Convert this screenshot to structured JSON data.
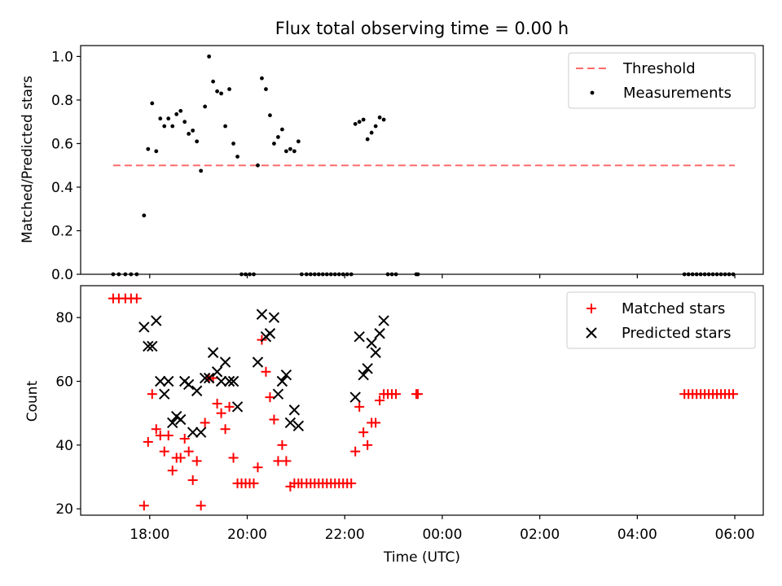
{
  "title": "Flux total observing time = 0.00 h",
  "colors": {
    "threshold": "#ff6b6b",
    "measurement": "#000000",
    "matched": "#ff0000",
    "predicted": "#000000"
  },
  "chart_data": [
    {
      "type": "scatter",
      "ylabel": "Matched/Predicted stars",
      "xlabel": "",
      "ylim": [
        0.0,
        1.05
      ],
      "yticks": [
        "0.0",
        "0.2",
        "0.4",
        "0.6",
        "0.8",
        "1.0"
      ],
      "legend_position": "top-right",
      "threshold": {
        "name": "Threshold",
        "value": 0.5,
        "x_range": [
          "17:15",
          "06:00"
        ],
        "style": "dashed"
      },
      "series": [
        {
          "name": "Measurements",
          "marker": "dot",
          "points": [
            [
              "17:15",
              0
            ],
            [
              "17:22",
              0
            ],
            [
              "17:30",
              0
            ],
            [
              "17:37",
              0
            ],
            [
              "17:44",
              0
            ],
            [
              "17:53",
              0.27
            ],
            [
              "17:58",
              0.575
            ],
            [
              "18:03",
              0.785
            ],
            [
              "18:08",
              0.565
            ],
            [
              "18:13",
              0.715
            ],
            [
              "18:18",
              0.68
            ],
            [
              "18:23",
              0.715
            ],
            [
              "18:28",
              0.68
            ],
            [
              "18:33",
              0.735
            ],
            [
              "18:38",
              0.75
            ],
            [
              "18:43",
              0.7
            ],
            [
              "18:48",
              0.645
            ],
            [
              "18:53",
              0.66
            ],
            [
              "18:58",
              0.61
            ],
            [
              "19:03",
              0.475
            ],
            [
              "19:08",
              0.77
            ],
            [
              "19:13",
              1.0
            ],
            [
              "19:18",
              0.885
            ],
            [
              "19:23",
              0.84
            ],
            [
              "19:28",
              0.83
            ],
            [
              "19:33",
              0.68
            ],
            [
              "19:38",
              0.85
            ],
            [
              "19:43",
              0.6
            ],
            [
              "19:48",
              0.54
            ],
            [
              "19:53",
              0
            ],
            [
              "19:58",
              0
            ],
            [
              "20:03",
              0
            ],
            [
              "20:08",
              0
            ],
            [
              "20:13",
              0.5
            ],
            [
              "20:18",
              0.9
            ],
            [
              "20:23",
              0.85
            ],
            [
              "20:28",
              0.73
            ],
            [
              "20:33",
              0.6
            ],
            [
              "20:38",
              0.63
            ],
            [
              "20:43",
              0.665
            ],
            [
              "20:48",
              0.565
            ],
            [
              "20:53",
              0.575
            ],
            [
              "20:58",
              0.565
            ],
            [
              "21:03",
              0.61
            ],
            [
              "21:07",
              0
            ],
            [
              "21:13",
              0
            ],
            [
              "21:18",
              0
            ],
            [
              "21:23",
              0
            ],
            [
              "21:28",
              0
            ],
            [
              "21:33",
              0
            ],
            [
              "21:38",
              0
            ],
            [
              "21:43",
              0
            ],
            [
              "21:48",
              0
            ],
            [
              "21:53",
              0
            ],
            [
              "21:58",
              0
            ],
            [
              "22:03",
              0
            ],
            [
              "22:08",
              0
            ],
            [
              "22:13",
              0.69
            ],
            [
              "22:18",
              0.7
            ],
            [
              "22:23",
              0.71
            ],
            [
              "22:28",
              0.62
            ],
            [
              "22:33",
              0.65
            ],
            [
              "22:38",
              0.68
            ],
            [
              "22:43",
              0.72
            ],
            [
              "22:48",
              0.71
            ],
            [
              "22:53",
              0
            ],
            [
              "22:58",
              0
            ],
            [
              "23:03",
              0
            ],
            [
              "23:28",
              0
            ],
            [
              "23:30",
              0
            ],
            [
              "04:58",
              0
            ],
            [
              "05:03",
              0
            ],
            [
              "05:08",
              0
            ],
            [
              "05:13",
              0
            ],
            [
              "05:18",
              0
            ],
            [
              "05:23",
              0
            ],
            [
              "05:28",
              0
            ],
            [
              "05:33",
              0
            ],
            [
              "05:38",
              0
            ],
            [
              "05:43",
              0
            ],
            [
              "05:48",
              0
            ],
            [
              "05:53",
              0
            ],
            [
              "05:58",
              0
            ]
          ]
        }
      ]
    },
    {
      "type": "scatter",
      "ylabel": "Count",
      "xlabel": "Time (UTC)",
      "ylim": [
        18,
        90
      ],
      "yticks": [
        "20",
        "40",
        "60",
        "80"
      ],
      "xlim": [
        "16:35",
        "06:35"
      ],
      "xticks": [
        "18:00",
        "20:00",
        "22:00",
        "00:00",
        "02:00",
        "04:00",
        "06:00"
      ],
      "legend_position": "top-right",
      "series": [
        {
          "name": "Matched stars",
          "marker": "plus",
          "points": [
            [
              "17:15",
              86
            ],
            [
              "17:22",
              86
            ],
            [
              "17:30",
              86
            ],
            [
              "17:37",
              86
            ],
            [
              "17:44",
              86
            ],
            [
              "17:53",
              21
            ],
            [
              "17:58",
              41
            ],
            [
              "18:03",
              56
            ],
            [
              "18:08",
              45
            ],
            [
              "18:13",
              43
            ],
            [
              "18:18",
              38
            ],
            [
              "18:23",
              43
            ],
            [
              "18:28",
              32
            ],
            [
              "18:33",
              36
            ],
            [
              "18:38",
              36
            ],
            [
              "18:43",
              42
            ],
            [
              "18:48",
              38
            ],
            [
              "18:53",
              29
            ],
            [
              "18:58",
              35
            ],
            [
              "19:03",
              21
            ],
            [
              "19:08",
              47
            ],
            [
              "19:13",
              61
            ],
            [
              "19:18",
              61
            ],
            [
              "19:23",
              53
            ],
            [
              "19:28",
              50
            ],
            [
              "19:33",
              45
            ],
            [
              "19:38",
              52
            ],
            [
              "19:43",
              36
            ],
            [
              "19:48",
              28
            ],
            [
              "19:53",
              28
            ],
            [
              "19:58",
              28
            ],
            [
              "20:03",
              28
            ],
            [
              "20:08",
              28
            ],
            [
              "20:13",
              33
            ],
            [
              "20:18",
              73
            ],
            [
              "20:23",
              63
            ],
            [
              "20:28",
              55
            ],
            [
              "20:33",
              48
            ],
            [
              "20:38",
              35
            ],
            [
              "20:43",
              40
            ],
            [
              "20:48",
              35
            ],
            [
              "20:53",
              27
            ],
            [
              "20:58",
              28
            ],
            [
              "21:03",
              28
            ],
            [
              "21:07",
              28
            ],
            [
              "21:13",
              28
            ],
            [
              "21:18",
              28
            ],
            [
              "21:23",
              28
            ],
            [
              "21:28",
              28
            ],
            [
              "21:33",
              28
            ],
            [
              "21:38",
              28
            ],
            [
              "21:43",
              28
            ],
            [
              "21:48",
              28
            ],
            [
              "21:53",
              28
            ],
            [
              "21:58",
              28
            ],
            [
              "22:03",
              28
            ],
            [
              "22:08",
              28
            ],
            [
              "22:13",
              38
            ],
            [
              "22:18",
              52
            ],
            [
              "22:23",
              44
            ],
            [
              "22:28",
              40
            ],
            [
              "22:33",
              47
            ],
            [
              "22:38",
              47
            ],
            [
              "22:43",
              54
            ],
            [
              "22:48",
              56
            ],
            [
              "22:53",
              56
            ],
            [
              "22:58",
              56
            ],
            [
              "23:03",
              56
            ],
            [
              "23:28",
              56
            ],
            [
              "23:30",
              56
            ],
            [
              "04:58",
              56
            ],
            [
              "05:03",
              56
            ],
            [
              "05:08",
              56
            ],
            [
              "05:13",
              56
            ],
            [
              "05:18",
              56
            ],
            [
              "05:23",
              56
            ],
            [
              "05:28",
              56
            ],
            [
              "05:33",
              56
            ],
            [
              "05:38",
              56
            ],
            [
              "05:43",
              56
            ],
            [
              "05:48",
              56
            ],
            [
              "05:53",
              56
            ],
            [
              "05:58",
              56
            ]
          ]
        },
        {
          "name": "Predicted stars",
          "marker": "x",
          "points": [
            [
              "17:53",
              77
            ],
            [
              "17:58",
              71
            ],
            [
              "18:03",
              71
            ],
            [
              "18:08",
              79
            ],
            [
              "18:13",
              60
            ],
            [
              "18:18",
              56
            ],
            [
              "18:23",
              60
            ],
            [
              "18:28",
              47
            ],
            [
              "18:33",
              49
            ],
            [
              "18:38",
              48
            ],
            [
              "18:43",
              60
            ],
            [
              "18:48",
              59
            ],
            [
              "18:53",
              44
            ],
            [
              "18:58",
              57
            ],
            [
              "19:03",
              44
            ],
            [
              "19:08",
              61
            ],
            [
              "19:13",
              61
            ],
            [
              "19:18",
              69
            ],
            [
              "19:23",
              63
            ],
            [
              "19:28",
              60
            ],
            [
              "19:33",
              66
            ],
            [
              "19:38",
              60
            ],
            [
              "19:43",
              60
            ],
            [
              "19:48",
              52
            ],
            [
              "20:13",
              66
            ],
            [
              "20:18",
              81
            ],
            [
              "20:23",
              74
            ],
            [
              "20:28",
              75
            ],
            [
              "20:33",
              80
            ],
            [
              "20:38",
              56
            ],
            [
              "20:43",
              60
            ],
            [
              "20:48",
              62
            ],
            [
              "20:53",
              47
            ],
            [
              "20:58",
              51
            ],
            [
              "21:03",
              46
            ],
            [
              "22:13",
              55
            ],
            [
              "22:18",
              74
            ],
            [
              "22:23",
              62
            ],
            [
              "22:28",
              64
            ],
            [
              "22:33",
              72
            ],
            [
              "22:38",
              69
            ],
            [
              "22:43",
              75
            ],
            [
              "22:48",
              79
            ]
          ]
        }
      ]
    }
  ]
}
